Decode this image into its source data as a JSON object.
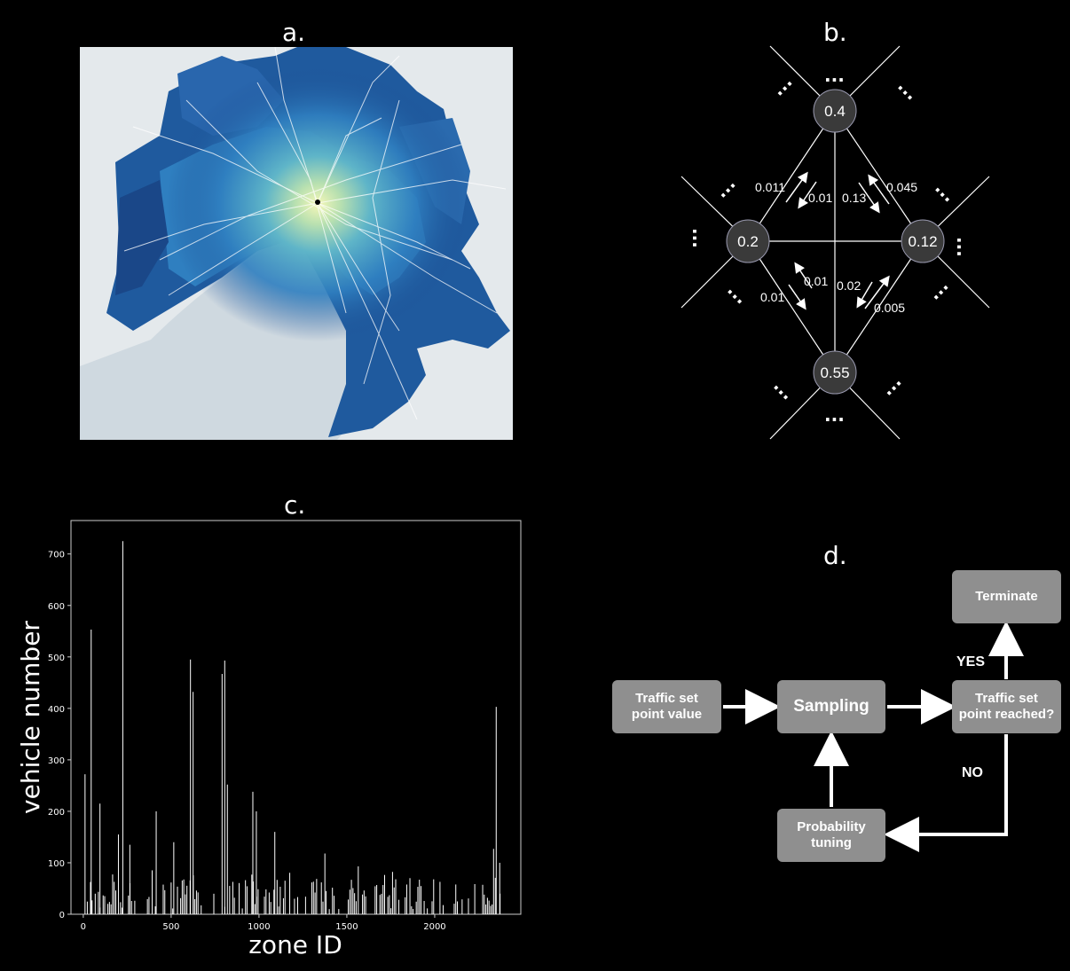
{
  "panels": {
    "a": "a.",
    "b": "b.",
    "c": "c.",
    "d": "d."
  },
  "colors": {
    "background": "#000000",
    "map_water": "#cfd9e0",
    "map_land": "#e4e9ec",
    "zone_dark": "#1b4d92",
    "zone_mid": "#2f7fc0",
    "zone_light": "#e9f3b0",
    "node_fill": "#3a3a3a",
    "flow_box": "#8f8f8f"
  },
  "network": {
    "nodes": [
      {
        "id": "top",
        "value": "0.4"
      },
      {
        "id": "left",
        "value": "0.2"
      },
      {
        "id": "right",
        "value": "0.12"
      },
      {
        "id": "bottom",
        "value": "0.55"
      }
    ],
    "edge_labels": [
      "0.011",
      "0.01",
      "0.13",
      "0.045",
      "0.01",
      "0.01",
      "0.02",
      "0.005"
    ],
    "ellipsis": "..."
  },
  "chart_data": {
    "type": "bar",
    "xlabel": "zone ID",
    "ylabel": "vehicle number",
    "xlim": [
      -70,
      2490
    ],
    "ylim": [
      0,
      765
    ],
    "xticks": [
      0,
      500,
      1000,
      1500,
      2000
    ],
    "yticks": [
      0,
      100,
      200,
      300,
      400,
      500,
      600,
      700
    ],
    "highlights": [
      {
        "x": 10,
        "y": 272
      },
      {
        "x": 45,
        "y": 553
      },
      {
        "x": 95,
        "y": 215
      },
      {
        "x": 200,
        "y": 155
      },
      {
        "x": 225,
        "y": 725
      },
      {
        "x": 265,
        "y": 135
      },
      {
        "x": 415,
        "y": 200
      },
      {
        "x": 515,
        "y": 140
      },
      {
        "x": 610,
        "y": 495
      },
      {
        "x": 625,
        "y": 432
      },
      {
        "x": 790,
        "y": 467
      },
      {
        "x": 805,
        "y": 493
      },
      {
        "x": 820,
        "y": 252
      },
      {
        "x": 965,
        "y": 238
      },
      {
        "x": 985,
        "y": 200
      },
      {
        "x": 1090,
        "y": 160
      },
      {
        "x": 1375,
        "y": 118
      },
      {
        "x": 1565,
        "y": 93
      },
      {
        "x": 2335,
        "y": 127
      },
      {
        "x": 2350,
        "y": 403
      },
      {
        "x": 2370,
        "y": 100
      }
    ],
    "base_seed": 7
  },
  "flowchart": {
    "set_point": "Traffic set\npoint value",
    "sampling": "Sampling",
    "reached": "Traffic set\npoint reached?",
    "terminate": "Terminate",
    "tuning": "Probability\ntuning",
    "yes": "YES",
    "no": "NO"
  }
}
